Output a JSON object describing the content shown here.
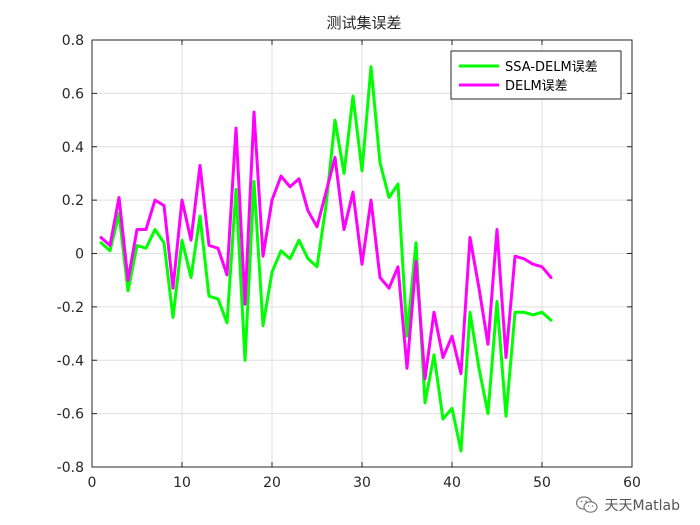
{
  "chart_data": {
    "type": "line",
    "title": "测试集误差",
    "xlabel": "",
    "ylabel": "",
    "xlim": [
      0,
      60
    ],
    "ylim": [
      -0.8,
      0.8
    ],
    "xticks": [
      0,
      10,
      20,
      30,
      40,
      50,
      60
    ],
    "yticks": [
      -0.8,
      -0.6,
      -0.4,
      -0.2,
      0,
      0.2,
      0.4,
      0.6,
      0.8
    ],
    "xtick_labels": [
      "0",
      "10",
      "20",
      "30",
      "40",
      "50",
      "60"
    ],
    "ytick_labels": [
      "-0.8",
      "-0.6",
      "-0.4",
      "-0.2",
      "0",
      "0.2",
      "0.4",
      "0.6",
      "0.8"
    ],
    "grid": true,
    "legend_position": "top-right",
    "x": [
      1,
      2,
      3,
      4,
      5,
      6,
      7,
      8,
      9,
      10,
      11,
      12,
      13,
      14,
      15,
      16,
      17,
      18,
      19,
      20,
      21,
      22,
      23,
      24,
      25,
      26,
      27,
      28,
      29,
      30,
      31,
      32,
      33,
      34,
      35,
      36,
      37,
      38,
      39,
      40,
      41,
      42,
      43,
      44,
      45,
      46,
      47,
      48,
      49,
      50,
      51
    ],
    "series": [
      {
        "name": "SSA-DELM误差",
        "color": "#00ff00",
        "values": [
          0.04,
          0.01,
          0.15,
          -0.14,
          0.03,
          0.02,
          0.09,
          0.04,
          -0.24,
          0.05,
          -0.09,
          0.14,
          -0.16,
          -0.17,
          -0.26,
          0.24,
          -0.4,
          0.27,
          -0.27,
          -0.07,
          0.01,
          -0.02,
          0.05,
          -0.02,
          -0.05,
          0.18,
          0.5,
          0.3,
          0.59,
          0.31,
          0.7,
          0.34,
          0.21,
          0.26,
          -0.31,
          0.04,
          -0.56,
          -0.38,
          -0.62,
          -0.58,
          -0.74,
          -0.22,
          -0.43,
          -0.6,
          -0.18,
          -0.61,
          -0.22,
          -0.22,
          -0.23,
          -0.22,
          -0.25
        ]
      },
      {
        "name": "DELM误差",
        "color": "#ff00ff",
        "values": [
          0.06,
          0.03,
          0.21,
          -0.1,
          0.09,
          0.09,
          0.2,
          0.18,
          -0.13,
          0.2,
          0.05,
          0.33,
          0.03,
          0.02,
          -0.08,
          0.47,
          -0.19,
          0.53,
          -0.01,
          0.2,
          0.29,
          0.25,
          0.28,
          0.16,
          0.1,
          0.23,
          0.36,
          0.09,
          0.23,
          -0.04,
          0.2,
          -0.09,
          -0.13,
          -0.05,
          -0.43,
          -0.03,
          -0.47,
          -0.22,
          -0.39,
          -0.31,
          -0.45,
          0.06,
          -0.13,
          -0.34,
          0.09,
          -0.39,
          -0.01,
          -0.02,
          -0.04,
          -0.05,
          -0.09
        ]
      }
    ]
  },
  "watermark": {
    "icon": "wechat-icon",
    "text": "天天Matlab"
  }
}
